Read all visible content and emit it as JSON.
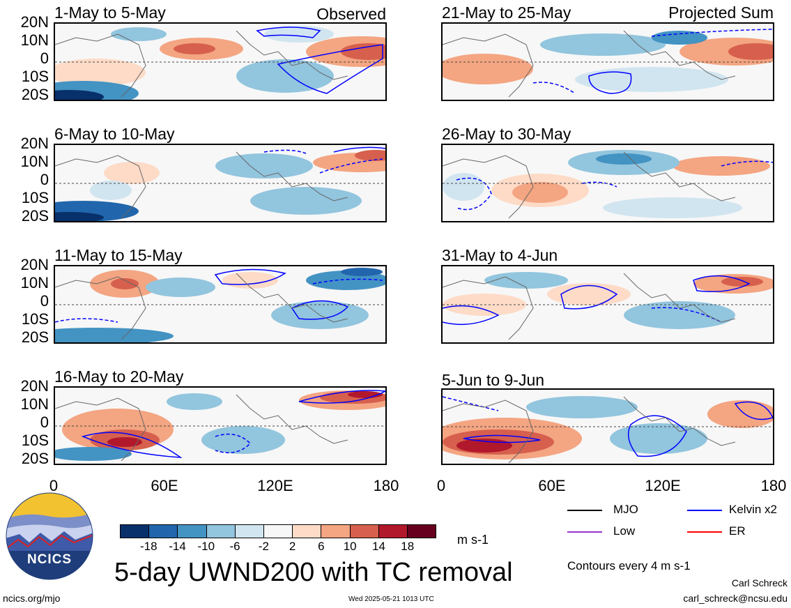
{
  "panels": [
    {
      "title": "1-May to 5-May",
      "label": "Observed"
    },
    {
      "title": "6-May to 10-May",
      "label": ""
    },
    {
      "title": "11-May to 15-May",
      "label": ""
    },
    {
      "title": "16-May to 20-May",
      "label": ""
    },
    {
      "title": "21-May to 25-May",
      "label": "Projected Sum"
    },
    {
      "title": "26-May to 30-May",
      "label": ""
    },
    {
      "title": "31-May to 4-Jun",
      "label": ""
    },
    {
      "title": "5-Jun to 9-Jun",
      "label": ""
    }
  ],
  "y_ticks": [
    "20N",
    "10N",
    "0",
    "10S",
    "20S"
  ],
  "x_ticks": [
    "0",
    "60E",
    "120E",
    "180"
  ],
  "colorbar": {
    "labels": [
      "-18",
      "-14",
      "-10",
      "-6",
      "-2",
      "2",
      "6",
      "10",
      "14",
      "18"
    ],
    "colors": [
      "#08306b",
      "#2166ac",
      "#4393c3",
      "#92c5de",
      "#d1e5f0",
      "#f7f7f7",
      "#fddbc7",
      "#f4a582",
      "#d6604d",
      "#b2182b",
      "#67001f"
    ],
    "units": "m s-1"
  },
  "legend": [
    {
      "label": "MJO",
      "color": "#000000"
    },
    {
      "label": "Kelvin x2",
      "color": "#0000ff"
    },
    {
      "label": "Low",
      "color": "#9932cc"
    },
    {
      "label": "ER",
      "color": "#ff0000"
    }
  ],
  "title": "5-day UWND200 with TC removal",
  "contour_note": "Contours every 4 m s-1",
  "logo_text": "NCICS",
  "footer": {
    "url": "ncics.org/mjo",
    "timestamp": "Wed 2025-05-21 1013 UTC",
    "author": "Carl Schreck",
    "email": "carl_schreck@ncsu.edu"
  }
}
